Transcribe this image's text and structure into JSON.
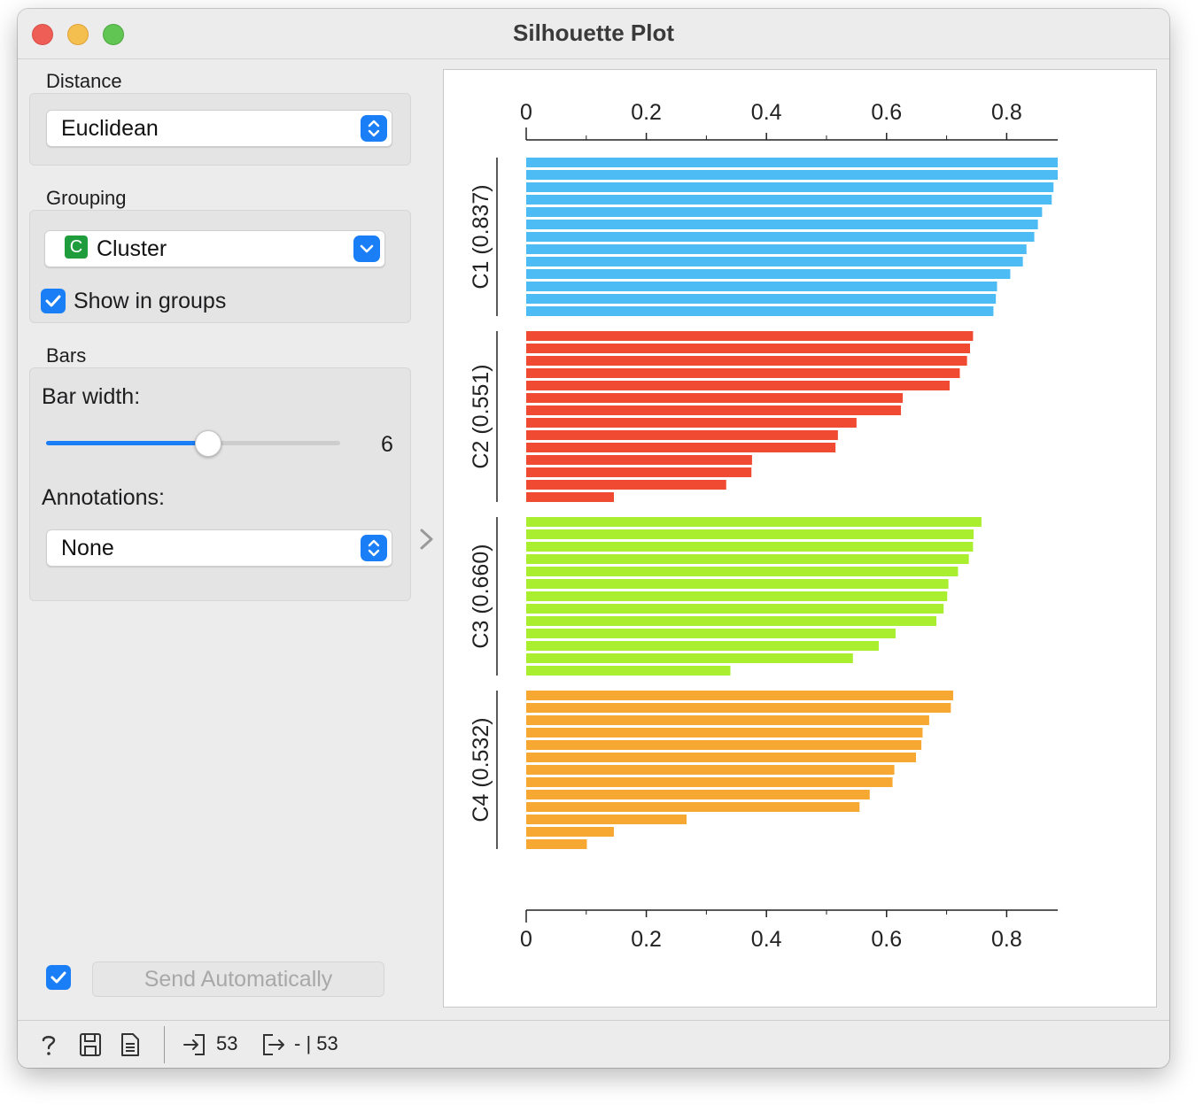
{
  "window": {
    "title": "Silhouette Plot"
  },
  "distance": {
    "label": "Distance",
    "selected": "Euclidean"
  },
  "grouping": {
    "label": "Grouping",
    "selected": "Cluster",
    "badge": "C",
    "show_in_groups": "Show in groups",
    "show_in_groups_checked": true
  },
  "bars": {
    "label": "Bars",
    "bar_width_label": "Bar width:",
    "bar_width_value": "6",
    "slider_fraction": 0.55,
    "annotations_label": "Annotations:",
    "annotations_selected": "None"
  },
  "send": {
    "label": "Send Automatically",
    "checked": true
  },
  "status": {
    "input_count": "53",
    "output_count": "- | 53"
  },
  "colors": {
    "accent": "#1a7ef7",
    "c1": "#4dbcf5",
    "c2": "#f04a32",
    "c3": "#a9ef30",
    "c4": "#f6a833"
  },
  "chart_data": {
    "type": "bar",
    "orientation": "horizontal",
    "xlim": [
      0,
      0.885
    ],
    "ticks": [
      "0",
      "0.2",
      "0.4",
      "0.6",
      "0.8"
    ],
    "tick_values": [
      0,
      0.2,
      0.4,
      0.6,
      0.8
    ],
    "minor_ticks": [
      0.1,
      0.3,
      0.5,
      0.7
    ],
    "series": [
      {
        "name": "C1 (0.837)",
        "color": "#4dbcf5",
        "values": [
          0.885,
          0.885,
          0.878,
          0.875,
          0.859,
          0.852,
          0.846,
          0.833,
          0.827,
          0.806,
          0.784,
          0.782,
          0.778
        ]
      },
      {
        "name": "C2 (0.551)",
        "color": "#f04a32",
        "values": [
          0.744,
          0.739,
          0.734,
          0.722,
          0.705,
          0.627,
          0.624,
          0.55,
          0.519,
          0.515,
          0.376,
          0.375,
          0.333,
          0.146
        ]
      },
      {
        "name": "C3 (0.660)",
        "color": "#a9ef30",
        "values": [
          0.758,
          0.745,
          0.744,
          0.737,
          0.719,
          0.703,
          0.701,
          0.695,
          0.683,
          0.615,
          0.587,
          0.544,
          0.34
        ]
      },
      {
        "name": "C4 (0.532)",
        "color": "#f6a833",
        "values": [
          0.711,
          0.707,
          0.671,
          0.66,
          0.658,
          0.649,
          0.613,
          0.61,
          0.572,
          0.555,
          0.267,
          0.146,
          0.101
        ]
      }
    ]
  }
}
